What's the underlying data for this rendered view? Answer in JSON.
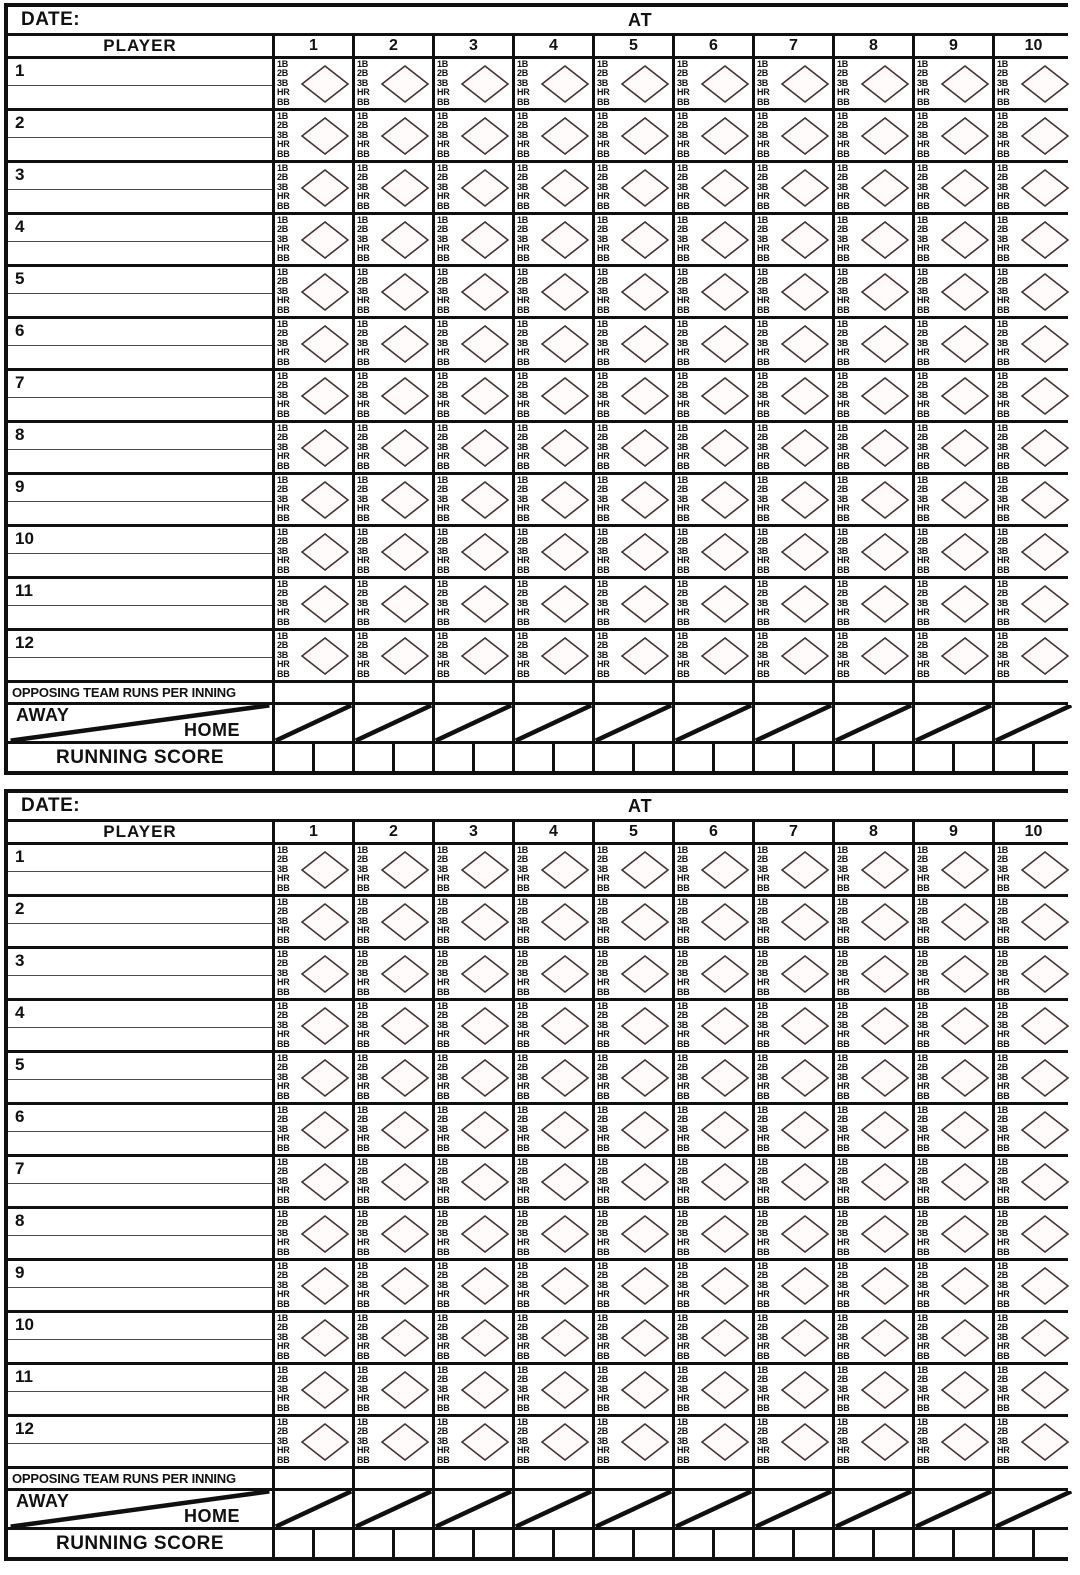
{
  "page": {
    "background": "#ffffff",
    "description": "Printable baseball scorecard sheet, two identical scorecards stacked vertically"
  },
  "cards": [
    "top",
    "bottom"
  ],
  "card": {
    "date_label": "DATE:",
    "at_label": "AT",
    "player_header": "PLAYER",
    "inning_headers": [
      "1",
      "2",
      "3",
      "4",
      "5",
      "6",
      "7",
      "8",
      "9",
      "10"
    ],
    "player_numbers": [
      "1",
      "2",
      "3",
      "4",
      "5",
      "6",
      "7",
      "8",
      "9",
      "10",
      "11",
      "12"
    ],
    "hit_labels": [
      "1B",
      "2B",
      "3B",
      "HR",
      "BB"
    ],
    "opposing_label": "OPPOSING TEAM RUNS PER INNING",
    "away_label": "AWAY",
    "home_label": "HOME",
    "running_score_label": "RUNNING SCORE",
    "running_score_subcells_per_inning": 2,
    "icons": {
      "at_bat_diamond": "diamond-icon",
      "score_slash": "diagonal-line-icon"
    },
    "colors": {
      "line": "#101010",
      "text": "#111111",
      "paper": "#ffffff",
      "diamond_stroke": "#453333",
      "diamond_fill": "#fffbfb",
      "name_line": "#4a4a4a"
    }
  }
}
